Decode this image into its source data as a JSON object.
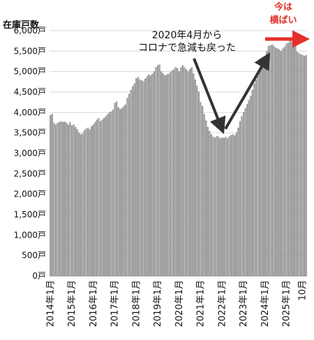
{
  "chart_data": {
    "type": "bar",
    "title": "在庫戸数",
    "annotation_main": [
      "2020年4月から",
      "コロナで急減も戻った"
    ],
    "annotation_now": [
      "今は",
      "横ばい"
    ],
    "ylim": [
      0,
      6000
    ],
    "y_ticks": [
      {
        "value": 0,
        "label": "0戸"
      },
      {
        "value": 500,
        "label": "500戸"
      },
      {
        "value": 1000,
        "label": "1,000戸"
      },
      {
        "value": 1500,
        "label": "1,500戸"
      },
      {
        "value": 2000,
        "label": "2,000戸"
      },
      {
        "value": 2500,
        "label": "2,500戸"
      },
      {
        "value": 3000,
        "label": "3,000戸"
      },
      {
        "value": 3500,
        "label": "3,500戸"
      },
      {
        "value": 4000,
        "label": "4,000戸"
      },
      {
        "value": 4500,
        "label": "4,500戸"
      },
      {
        "value": 5000,
        "label": "5,000戸"
      },
      {
        "value": 5500,
        "label": "5,500戸"
      },
      {
        "value": 6000,
        "label": "6,000戸"
      }
    ],
    "x_ticks": [
      {
        "index": 0,
        "label": "2014年1月"
      },
      {
        "index": 12,
        "label": "2015年1月"
      },
      {
        "index": 24,
        "label": "2016年1月"
      },
      {
        "index": 36,
        "label": "2017年1月"
      },
      {
        "index": 48,
        "label": "2018年1月"
      },
      {
        "index": 60,
        "label": "2019年1月"
      },
      {
        "index": 72,
        "label": "2020年1月"
      },
      {
        "index": 84,
        "label": "2021年1月"
      },
      {
        "index": 96,
        "label": "2022年1月"
      },
      {
        "index": 108,
        "label": "2023年1月"
      },
      {
        "index": 120,
        "label": "2024年1月"
      },
      {
        "index": 132,
        "label": "2025年1月"
      },
      {
        "index": 141,
        "label": "10月"
      }
    ],
    "series": [
      {
        "values": [
          3930,
          3960,
          3740,
          3700,
          3740,
          3760,
          3780,
          3760,
          3770,
          3740,
          3700,
          3760,
          3680,
          3700,
          3640,
          3580,
          3500,
          3460,
          3480,
          3560,
          3600,
          3620,
          3580,
          3660,
          3700,
          3760,
          3820,
          3860,
          3780,
          3820,
          3860,
          3900,
          3950,
          4000,
          4020,
          4060,
          4230,
          4260,
          4120,
          4080,
          4100,
          4150,
          4190,
          4350,
          4450,
          4550,
          4630,
          4700,
          4830,
          4860,
          4800,
          4780,
          4760,
          4820,
          4880,
          4920,
          4900,
          4940,
          5000,
          5100,
          5150,
          5170,
          5000,
          4950,
          4900,
          4920,
          4940,
          4980,
          5020,
          5050,
          5100,
          5080,
          5000,
          5100,
          5150,
          5100,
          5050,
          5000,
          5060,
          5100,
          4950,
          4800,
          4650,
          4500,
          4250,
          4150,
          3960,
          3800,
          3640,
          3540,
          3460,
          3400,
          3380,
          3420,
          3400,
          3360,
          3380,
          3370,
          3400,
          3360,
          3410,
          3440,
          3460,
          3430,
          3500,
          3620,
          3780,
          3900,
          4000,
          4100,
          4200,
          4300,
          4400,
          4550,
          4700,
          4800,
          4900,
          5000,
          5100,
          5200,
          5350,
          5500,
          5620,
          5640,
          5660,
          5620,
          5580,
          5560,
          5540,
          5500,
          5560,
          5600,
          5680,
          5700,
          5750,
          5730,
          5720,
          5680,
          5480,
          5450,
          5420,
          5400,
          5380,
          5400
        ]
      }
    ],
    "colors": {
      "bar": "#a9a9a9",
      "bar_edge": "#6f6f6f",
      "arrow": "#333333",
      "accent": "#e3302b"
    }
  }
}
